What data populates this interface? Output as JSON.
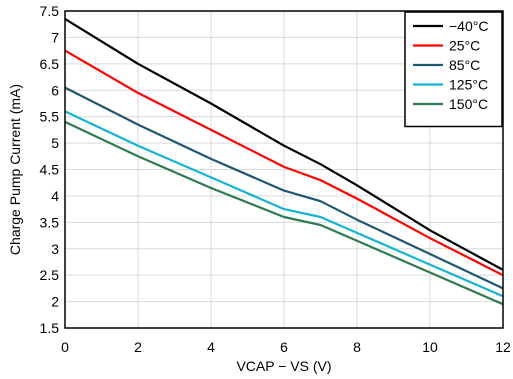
{
  "chart_data": {
    "type": "line",
    "title": "",
    "xlabel": "VCAP − VS (V)",
    "ylabel": "Charge Pump Current (mA)",
    "xlim": [
      0,
      12
    ],
    "ylim": [
      1.5,
      7.5
    ],
    "x_ticks": [
      "0",
      "2",
      "4",
      "6",
      "8",
      "10",
      "12"
    ],
    "y_ticks": [
      "1.5",
      "2",
      "2.5",
      "3",
      "3.5",
      "4",
      "4.5",
      "5",
      "5.5",
      "6",
      "6.5",
      "7",
      "7.5"
    ],
    "grid": true,
    "legend_position": "top-right",
    "series": [
      {
        "name": "−40°C",
        "color": "#000000",
        "x": [
          0,
          2,
          4,
          6,
          7,
          8,
          10,
          12
        ],
        "y": [
          7.35,
          6.5,
          5.75,
          4.95,
          4.6,
          4.2,
          3.35,
          2.6
        ]
      },
      {
        "name": "25°C",
        "color": "#ff0000",
        "x": [
          0,
          2,
          4,
          6,
          7,
          8,
          10,
          12
        ],
        "y": [
          6.75,
          5.95,
          5.25,
          4.55,
          4.3,
          3.95,
          3.2,
          2.5
        ]
      },
      {
        "name": "85°C",
        "color": "#1f5873",
        "x": [
          0,
          2,
          4,
          6,
          7,
          8,
          10,
          12
        ],
        "y": [
          6.05,
          5.35,
          4.7,
          4.1,
          3.9,
          3.55,
          2.9,
          2.25
        ]
      },
      {
        "name": "125°C",
        "color": "#16b4d4",
        "x": [
          0,
          2,
          4,
          6,
          7,
          8,
          10,
          12
        ],
        "y": [
          5.6,
          4.95,
          4.35,
          3.75,
          3.6,
          3.3,
          2.7,
          2.1
        ]
      },
      {
        "name": "150°C",
        "color": "#2f7a4f",
        "x": [
          0,
          2,
          4,
          6,
          7,
          8,
          10,
          12
        ],
        "y": [
          5.4,
          4.75,
          4.15,
          3.6,
          3.45,
          3.15,
          2.55,
          1.95
        ]
      }
    ]
  }
}
